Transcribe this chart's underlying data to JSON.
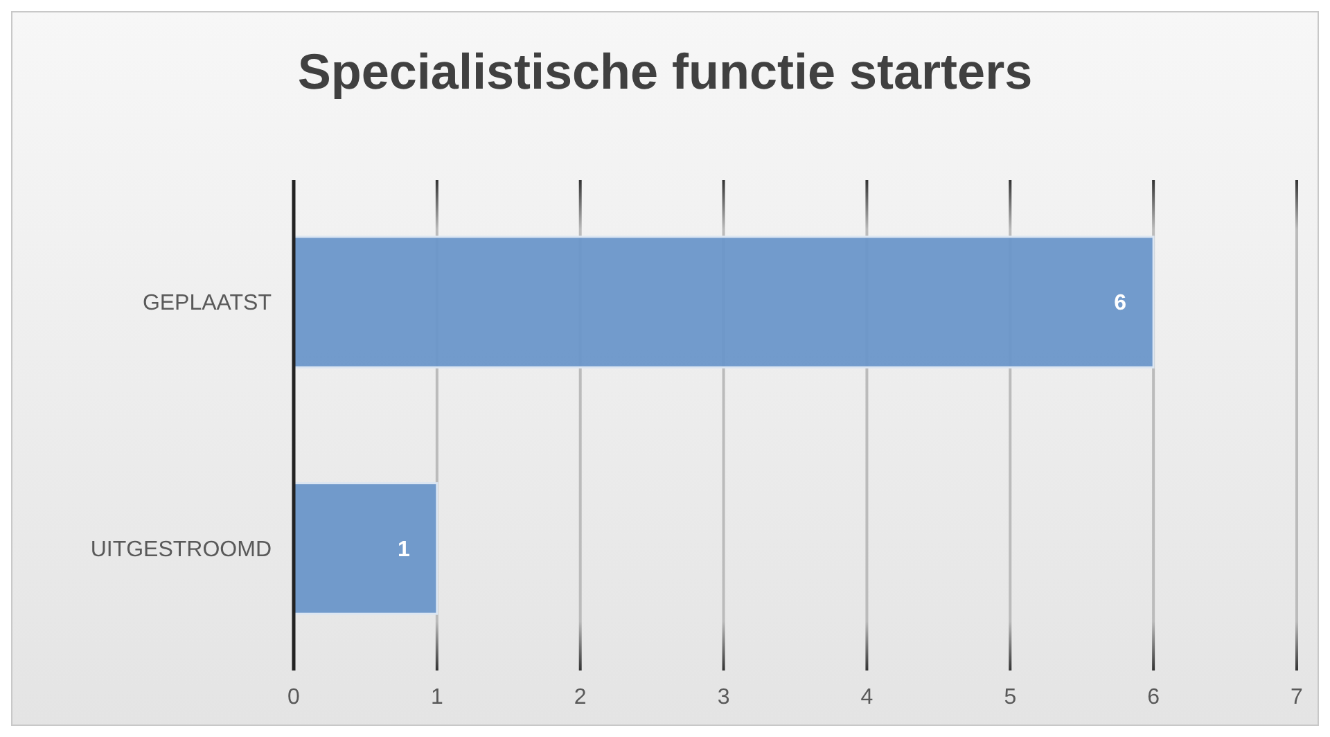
{
  "chart_data": {
    "type": "bar",
    "orientation": "horizontal",
    "title": "Specialistische functie starters",
    "categories": [
      "GEPLAATST",
      "UITGESTROOMD"
    ],
    "values": [
      6,
      1
    ],
    "color": "#6a96c9",
    "xlim": [
      0,
      7
    ],
    "xticks": [
      0,
      1,
      2,
      3,
      4,
      5,
      6,
      7
    ],
    "grid": "x",
    "data_labels": true
  }
}
